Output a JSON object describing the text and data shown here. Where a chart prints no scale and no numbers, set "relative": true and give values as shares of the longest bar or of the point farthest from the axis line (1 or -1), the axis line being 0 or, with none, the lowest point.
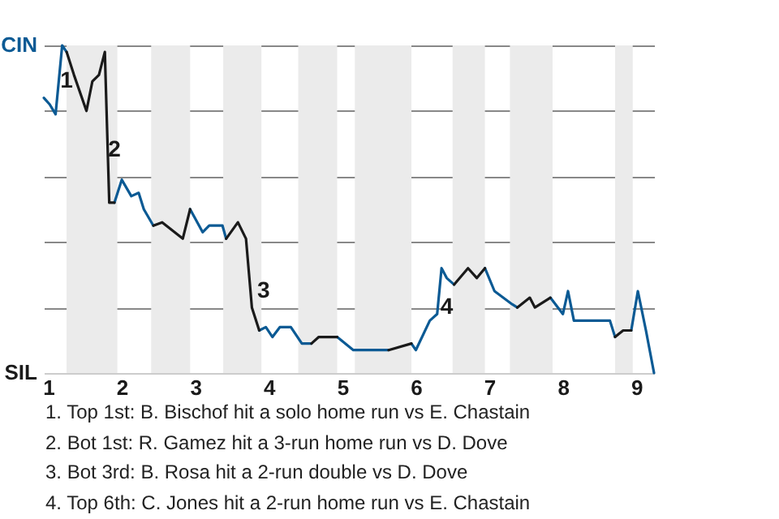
{
  "chart_data": {
    "type": "line",
    "relative": true,
    "series": [
      {
        "color": "#0b5a94",
        "x": [
          0.94,
          1.02,
          1.1,
          1.19,
          1.25,
          null,
          1.9,
          2.0,
          2.13,
          2.23,
          2.3,
          2.43,
          null,
          2.93,
          3.1,
          3.19,
          3.37,
          3.42,
          null,
          3.87,
          3.96,
          4.05,
          4.15,
          4.3,
          4.45,
          4.58,
          null,
          4.93,
          5.15,
          5.35,
          5.63,
          null,
          5.94,
          6.0,
          6.19,
          6.29,
          6.35,
          6.42,
          6.52,
          null,
          6.94,
          7.07,
          7.31,
          7.38,
          null,
          7.83,
          8.0,
          8.07,
          8.15,
          8.64,
          8.71,
          null,
          8.93,
          9.02,
          9.13,
          9.24
        ],
        "values": [
          0.84,
          0.82,
          0.79,
          1,
          0.98,
          null,
          0.52,
          0.59,
          0.54,
          0.55,
          0.5,
          0.45,
          null,
          0.5,
          0.43,
          0.45,
          0.45,
          0.41,
          null,
          0.13,
          0.14,
          0.11,
          0.14,
          0.14,
          0.09,
          0.09,
          null,
          0.11,
          0.07,
          0.07,
          0.07,
          null,
          0.09,
          0.07,
          0.16,
          0.18,
          0.32,
          0.29,
          0.27,
          null,
          0.32,
          0.25,
          0.21,
          0.2,
          null,
          0.23,
          0.18,
          0.25,
          0.16,
          0.16,
          0.11,
          null,
          0.13,
          0.25,
          0.13,
          0
        ]
      },
      {
        "color": "#1a1a1a",
        "x": [
          1.25,
          1.35,
          1.52,
          1.6,
          1.69,
          1.77,
          1.83,
          1.9,
          null,
          2.43,
          2.55,
          2.83,
          2.93,
          null,
          3.42,
          3.58,
          3.69,
          3.77,
          3.87,
          null,
          4.58,
          4.68,
          4.93,
          null,
          5.63,
          5.94,
          null,
          6.52,
          6.71,
          6.83,
          6.94,
          null,
          7.38,
          7.55,
          7.62,
          7.83,
          null,
          8.71,
          8.82,
          8.93
        ],
        "values": [
          0.98,
          0.91,
          0.8,
          0.89,
          0.91,
          0.98,
          0.52,
          0.52,
          null,
          0.45,
          0.46,
          0.41,
          0.5,
          null,
          0.41,
          0.46,
          0.41,
          0.2,
          0.13,
          null,
          0.09,
          0.11,
          0.11,
          null,
          0.07,
          0.09,
          null,
          0.27,
          0.32,
          0.29,
          0.32,
          null,
          0.2,
          0.23,
          0.2,
          0.23,
          null,
          0.11,
          0.13,
          0.13
        ]
      }
    ],
    "xlim": [
      0.94,
      9.24
    ],
    "xticks": [
      1,
      2,
      3,
      4,
      5,
      6,
      7,
      8,
      9
    ],
    "grid": "y",
    "bands": [
      {
        "axis": "x",
        "from": 1.25,
        "to": 1.94,
        "color": "#ebebeb"
      },
      {
        "axis": "x",
        "from": 2.4,
        "to": 2.93,
        "color": "#ebebeb"
      },
      {
        "axis": "x",
        "from": 3.38,
        "to": 3.9,
        "color": "#ebebeb"
      },
      {
        "axis": "x",
        "from": 4.4,
        "to": 4.93,
        "color": "#ebebeb"
      },
      {
        "axis": "x",
        "from": 5.17,
        "to": 5.94,
        "color": "#ebebeb"
      },
      {
        "axis": "x",
        "from": 6.5,
        "to": 6.94,
        "color": "#ebebeb"
      },
      {
        "axis": "x",
        "from": 7.28,
        "to": 7.86,
        "color": "#ebebeb"
      },
      {
        "axis": "x",
        "from": 8.71,
        "to": 8.95,
        "color": "#ebebeb"
      }
    ],
    "annotations": [
      {
        "text": "1",
        "x": 1.25,
        "y": 0.89
      },
      {
        "text": "2",
        "x": 1.9,
        "y": 0.68
      },
      {
        "text": "3",
        "x": 3.93,
        "y": 0.25
      },
      {
        "text": "4",
        "x": 6.42,
        "y": 0.2
      },
      "CIN",
      "SIL",
      "1. Top 1st: B. Bischof hit a solo home run vs E. Chastain",
      "2. Bot 1st: R. Gamez hit a 3-run home run vs D. Dove",
      "3. Bot 3rd: B. Rosa hit a 2-run double vs D. Dove",
      "4. Top 6th: C. Jones hit a 2-run home run vs E. Chastain"
    ]
  }
}
